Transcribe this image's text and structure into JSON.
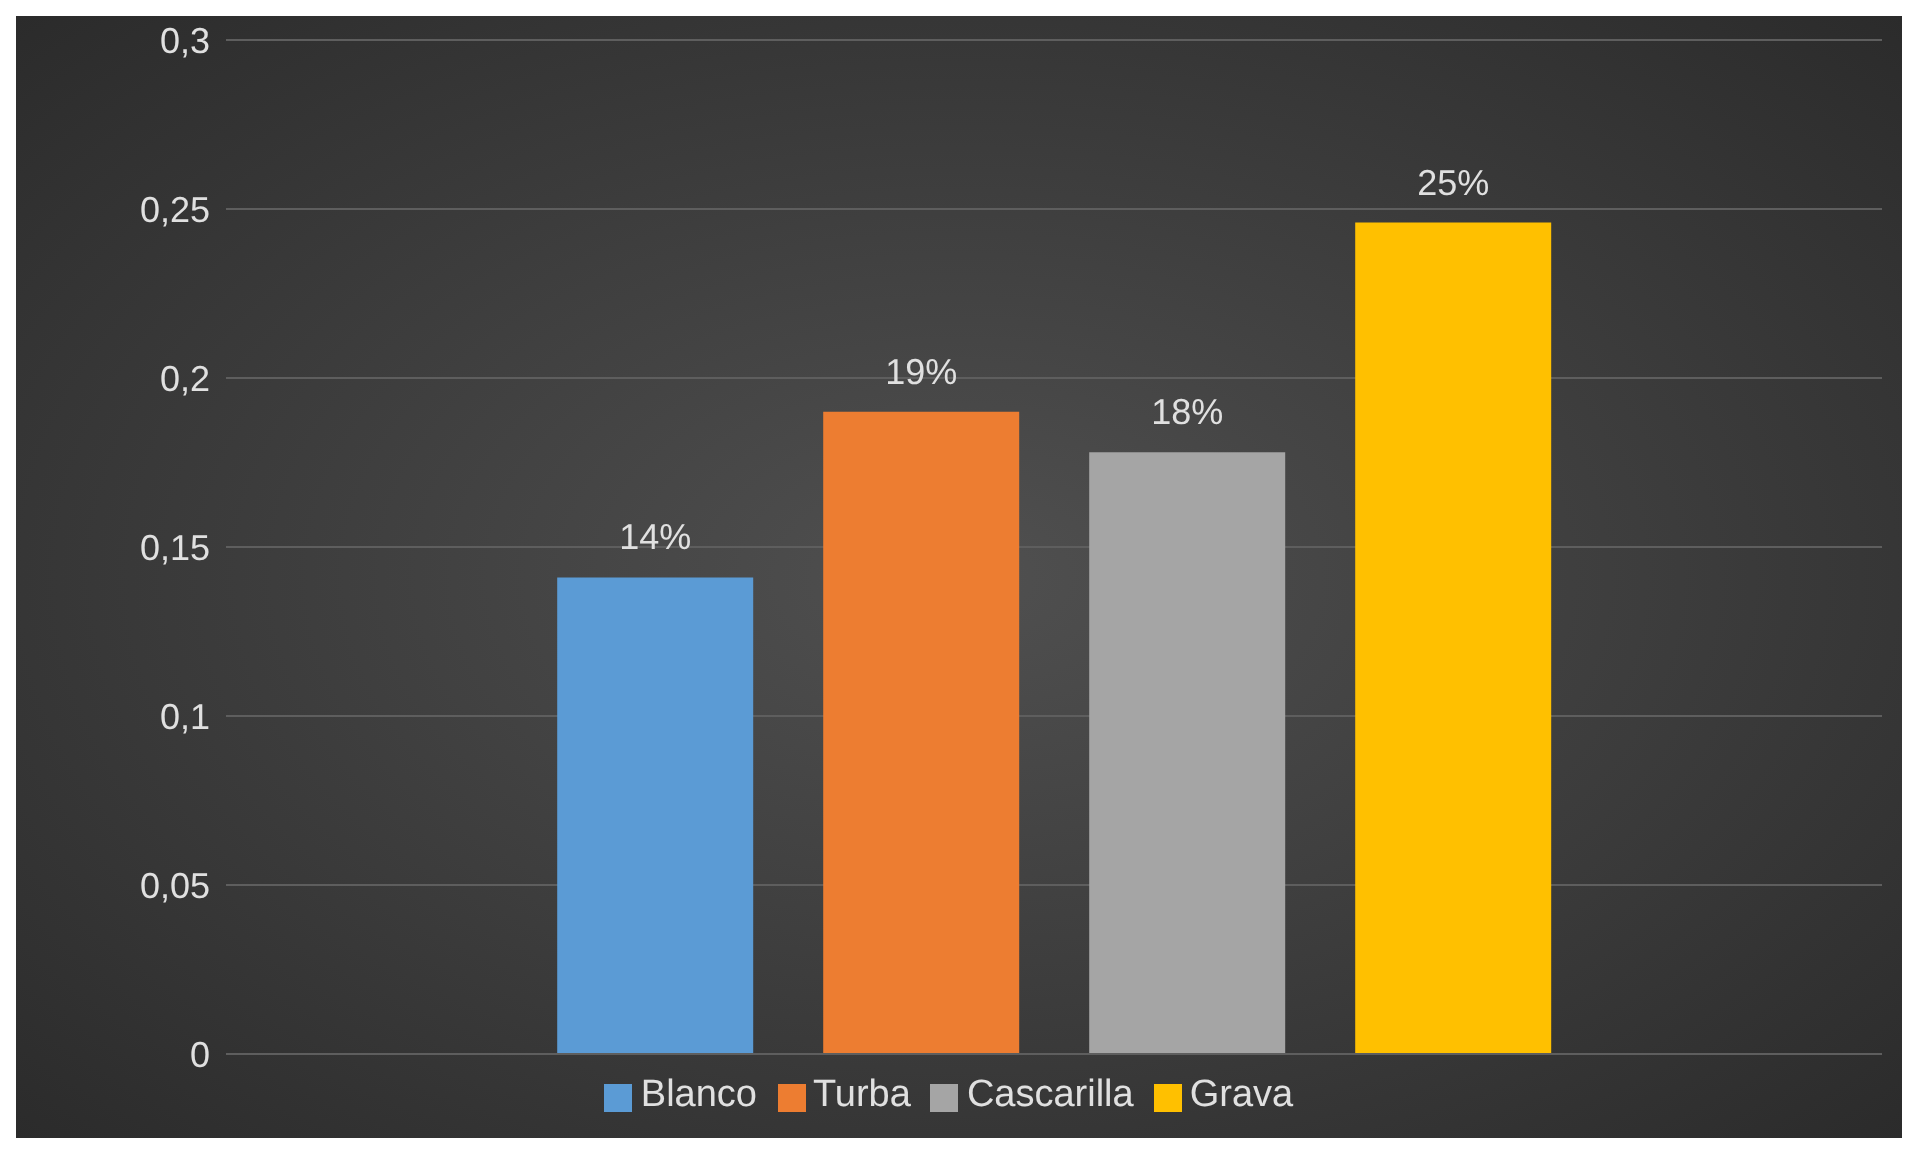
{
  "chart_data": {
    "type": "bar",
    "categories": [
      null
    ],
    "series": [
      {
        "name": "Blanco",
        "color": "#5b9bd5",
        "values": [
          0.141
        ],
        "value_labels": [
          "14%"
        ]
      },
      {
        "name": "Turba",
        "color": "#ed7d31",
        "values": [
          0.19
        ],
        "value_labels": [
          "19%"
        ]
      },
      {
        "name": "Cascarilla",
        "color": "#a5a5a5",
        "values": [
          0.178
        ],
        "value_labels": [
          "18%"
        ]
      },
      {
        "name": "Grava",
        "color": "#ffc000",
        "values": [
          0.246
        ],
        "value_labels": [
          "25%"
        ]
      }
    ],
    "ylim": [
      0,
      0.3
    ],
    "yticks": [
      0,
      {
        "value": 0.05,
        "label": "0,05"
      },
      {
        "value": 0.1,
        "label": "0,1"
      },
      {
        "value": 0.15,
        "label": "0,15"
      },
      {
        "value": 0.2,
        "label": "0,2"
      },
      {
        "value": 0.25,
        "label": "0,25"
      },
      {
        "value": 0.3,
        "label": "0,3"
      }
    ],
    "grid": "y",
    "legend": "bottom"
  }
}
